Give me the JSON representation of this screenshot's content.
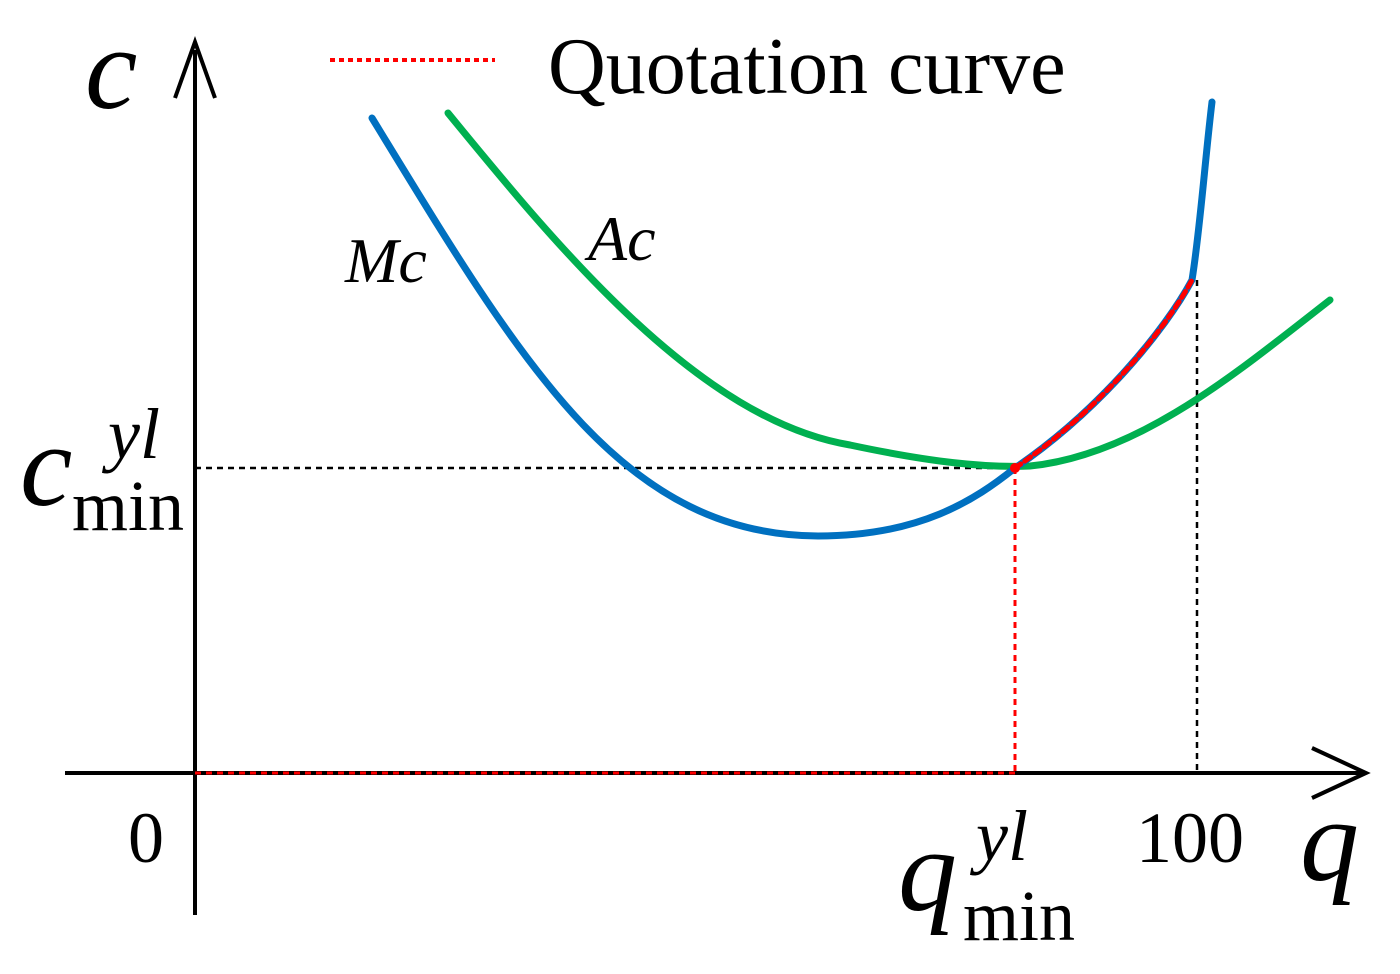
{
  "legend": {
    "label": "Quotation curve",
    "line_color": "#ff0000",
    "line_style": "dotted"
  },
  "axes": {
    "y_label": "c",
    "x_label": "q",
    "origin_label": "0",
    "x_tick_label": "100"
  },
  "labels": {
    "c_min_main": "c",
    "c_min_sup": "yl",
    "c_min_sub": "min",
    "q_min_main": "q",
    "q_min_sup": "yl",
    "q_min_sub": "min",
    "mc_label": "Mc",
    "ac_label": "Ac"
  },
  "curves": {
    "mc": {
      "name": "Mc",
      "color": "#0070c0"
    },
    "ac": {
      "name": "Ac",
      "color": "#00b050"
    },
    "quotation": {
      "name": "Quotation curve",
      "color": "#ff0000"
    }
  },
  "colors": {
    "axis": "#000000",
    "guide_black": "#000000",
    "guide_red": "#ff0000"
  }
}
